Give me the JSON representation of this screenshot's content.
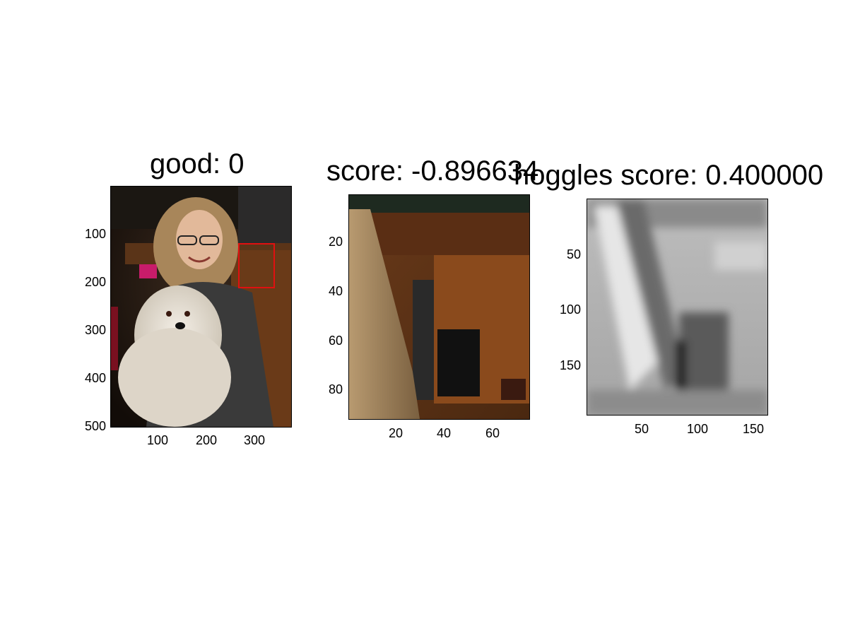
{
  "panels": [
    {
      "id": "panel-1",
      "title": "good: 0",
      "yticks": [
        "100",
        "200",
        "300",
        "400",
        "500"
      ],
      "xticks": [
        "100",
        "200",
        "300"
      ]
    },
    {
      "id": "panel-2",
      "title": "score: -0.896634",
      "yticks": [
        "20",
        "40",
        "60",
        "80"
      ],
      "xticks": [
        "20",
        "40",
        "60"
      ]
    },
    {
      "id": "panel-3",
      "title": "hoggles score: 0.400000",
      "yticks": [
        "50",
        "100",
        "150"
      ],
      "xticks": [
        "50",
        "100",
        "150"
      ]
    }
  ],
  "colors": {
    "detection_box": "#e01010",
    "axis": "#000000",
    "background": "#ffffff"
  }
}
